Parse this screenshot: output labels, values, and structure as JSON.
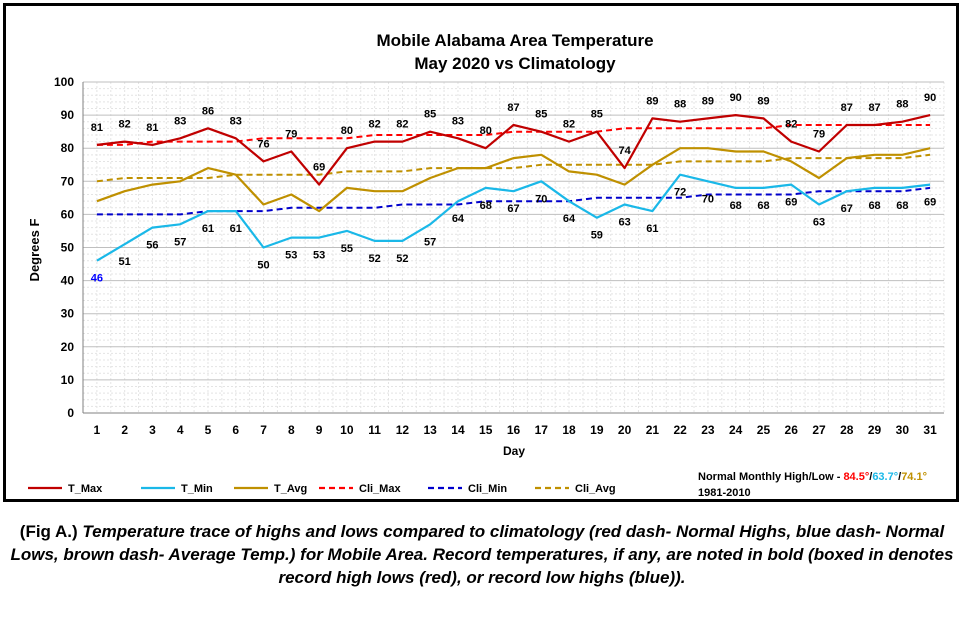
{
  "chart_data": {
    "type": "line",
    "title": "Mobile Alabama Area Temperature",
    "subtitle": "May 2020 vs Climatology",
    "xlabel": "Day",
    "ylabel": "Degrees F",
    "ylim": [
      0,
      100
    ],
    "yticks": [
      0,
      10,
      20,
      30,
      40,
      50,
      60,
      70,
      80,
      90,
      100
    ],
    "x": [
      1,
      2,
      3,
      4,
      5,
      6,
      7,
      8,
      9,
      10,
      11,
      12,
      13,
      14,
      15,
      16,
      17,
      18,
      19,
      20,
      21,
      22,
      23,
      24,
      25,
      26,
      27,
      28,
      29,
      30,
      31
    ],
    "grid": true,
    "legend_position": "bottom",
    "series": [
      {
        "name": "T_Max",
        "color": "#c00000",
        "style": "solid",
        "labels": true,
        "label_pos": "above",
        "values": [
          81,
          82,
          81,
          83,
          86,
          83,
          76,
          79,
          69,
          80,
          82,
          82,
          85,
          83,
          80,
          87,
          85,
          82,
          85,
          74,
          89,
          88,
          89,
          90,
          89,
          82,
          79,
          87,
          87,
          88,
          90
        ]
      },
      {
        "name": "T_Min",
        "color": "#1ab8e8",
        "style": "solid",
        "labels": true,
        "label_pos": "below",
        "values": [
          46,
          51,
          56,
          57,
          61,
          61,
          50,
          53,
          53,
          55,
          52,
          52,
          57,
          64,
          68,
          67,
          70,
          64,
          59,
          63,
          61,
          72,
          70,
          68,
          68,
          69,
          63,
          67,
          68,
          68,
          69
        ]
      },
      {
        "name": "T_Avg",
        "color": "#bf9000",
        "style": "solid",
        "labels": false,
        "values": [
          64,
          67,
          69,
          70,
          74,
          72,
          63,
          66,
          61,
          68,
          67,
          67,
          71,
          74,
          74,
          77,
          78,
          73,
          72,
          69,
          75,
          80,
          80,
          79,
          79,
          76,
          71,
          77,
          78,
          78,
          80
        ]
      },
      {
        "name": "Cli_Max",
        "color": "#ff0000",
        "style": "dash",
        "labels": false,
        "values": [
          81,
          81,
          82,
          82,
          82,
          82,
          83,
          83,
          83,
          83,
          84,
          84,
          84,
          84,
          84,
          85,
          85,
          85,
          85,
          86,
          86,
          86,
          86,
          86,
          86,
          87,
          87,
          87,
          87,
          87,
          87
        ]
      },
      {
        "name": "Cli_Min",
        "color": "#0000cc",
        "style": "dash",
        "labels": false,
        "values": [
          60,
          60,
          60,
          60,
          61,
          61,
          61,
          62,
          62,
          62,
          62,
          63,
          63,
          63,
          64,
          64,
          64,
          64,
          65,
          65,
          65,
          65,
          66,
          66,
          66,
          66,
          67,
          67,
          67,
          67,
          68
        ]
      },
      {
        "name": "Cli_Avg",
        "color": "#bf9000",
        "style": "dash",
        "labels": false,
        "values": [
          70,
          71,
          71,
          71,
          71,
          72,
          72,
          72,
          72,
          73,
          73,
          73,
          74,
          74,
          74,
          74,
          75,
          75,
          75,
          75,
          75,
          76,
          76,
          76,
          76,
          77,
          77,
          77,
          77,
          77,
          78
        ]
      }
    ],
    "record_labels": [
      {
        "series": "T_Min",
        "day": 1,
        "color": "#0000ff"
      }
    ],
    "normals_note": {
      "prefix": "Normal Monthly High/Low - ",
      "high": "84.5°",
      "high_color": "#ff0000",
      "sep1": "/",
      "low": "63.7°",
      "low_color": "#1ab8e8",
      "sep2": "/",
      "avg": "74.1°",
      "avg_color": "#bf9000",
      "period": "1981-2010"
    }
  },
  "caption": {
    "lead": "(Fig A.)",
    "rest": " Temperature trace of highs and lows compared to climatology (red dash- Normal Highs, blue dash- Normal Lows, brown dash- Average Temp.) for Mobile Area. Record temperatures, if any, are noted in bold (boxed in denotes record high lows (red), or record low highs (blue))."
  }
}
